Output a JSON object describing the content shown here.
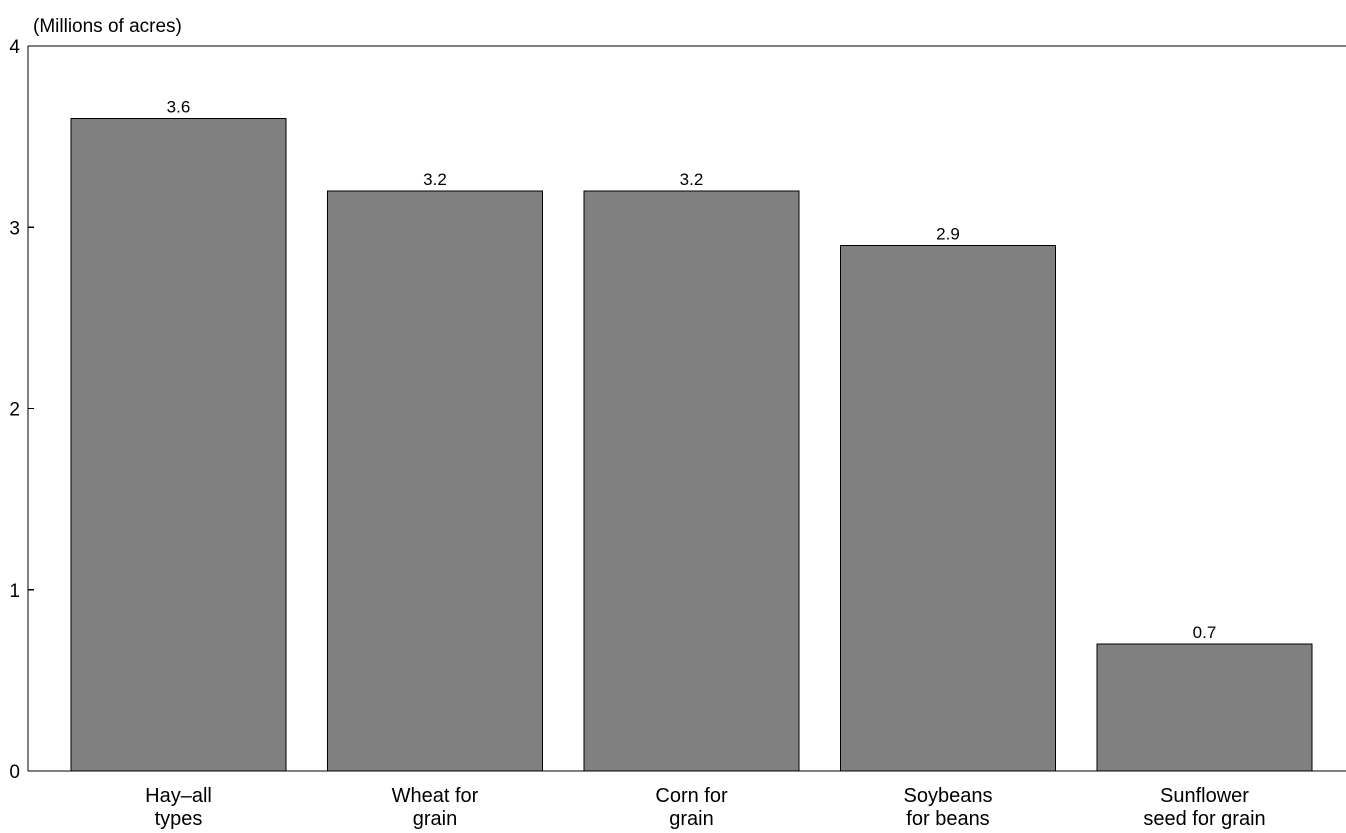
{
  "chart_data": {
    "type": "bar",
    "unit_label": "(Millions of acres)",
    "categories": [
      [
        "Hay–all",
        "types"
      ],
      [
        "Wheat for",
        "grain"
      ],
      [
        "Corn for",
        "grain"
      ],
      [
        "Soybeans",
        "for beans"
      ],
      [
        "Sunflower",
        "seed for grain"
      ]
    ],
    "values": [
      3.6,
      3.2,
      3.2,
      2.9,
      0.7
    ],
    "data_labels": [
      "3.6",
      "3.2",
      "3.2",
      "2.9",
      "0.7"
    ],
    "ylim": [
      0,
      4
    ],
    "yticks": [
      0,
      1,
      2,
      3,
      4
    ],
    "grid": false,
    "legend": "none",
    "colors": {
      "bar_fill": "#808080",
      "bar_stroke": "#000000",
      "axis": "#000000"
    }
  }
}
